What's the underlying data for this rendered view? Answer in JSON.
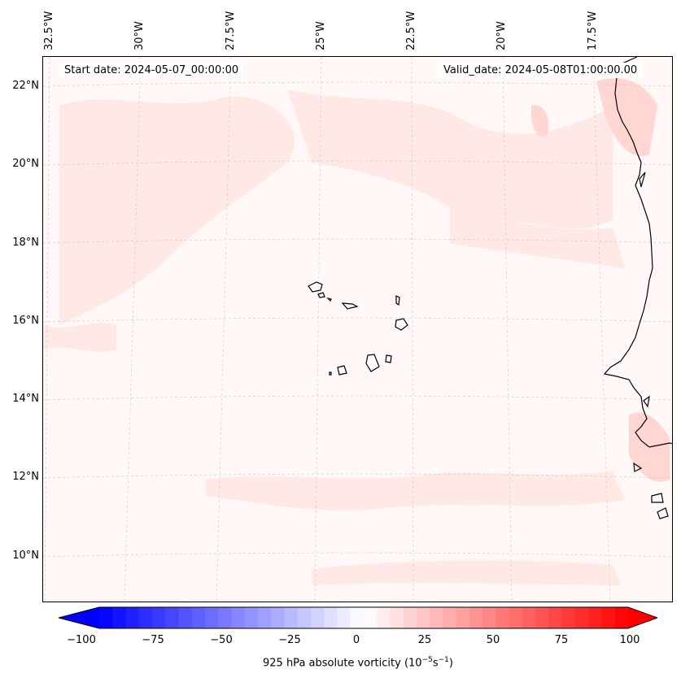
{
  "map": {
    "start_date": "Start date: 2024-05-07_00:00:00",
    "valid_date": "Valid_date: 2024-05-08T01:00:00.00",
    "lon_labels": [
      "32.5°W",
      "30°W",
      "27.5°W",
      "25°W",
      "22.5°W",
      "20°W",
      "17.5°W"
    ],
    "lat_labels": [
      "22°N",
      "20°N",
      "18°N",
      "16°N",
      "14°N",
      "12°N",
      "10°N"
    ],
    "colors": {
      "ocean_base": "#fff8f7",
      "light_pink": "#ffe8e6",
      "pink": "#ffd6d2",
      "coast": "#000000",
      "grid": "#c8c8c8"
    }
  },
  "colorbar": {
    "label": "925 hPa absolute vorticity (10",
    "label_exp1": "−5",
    "label_mid": "s",
    "label_exp2": "−1",
    "label_end": ")",
    "ticks": [
      "−100",
      "−75",
      "−50",
      "−25",
      "0",
      "25",
      "50",
      "75",
      "100"
    ],
    "min_color": "#0000ff",
    "mid_color": "#ffffff",
    "max_color": "#ff0000",
    "levels": 40
  }
}
